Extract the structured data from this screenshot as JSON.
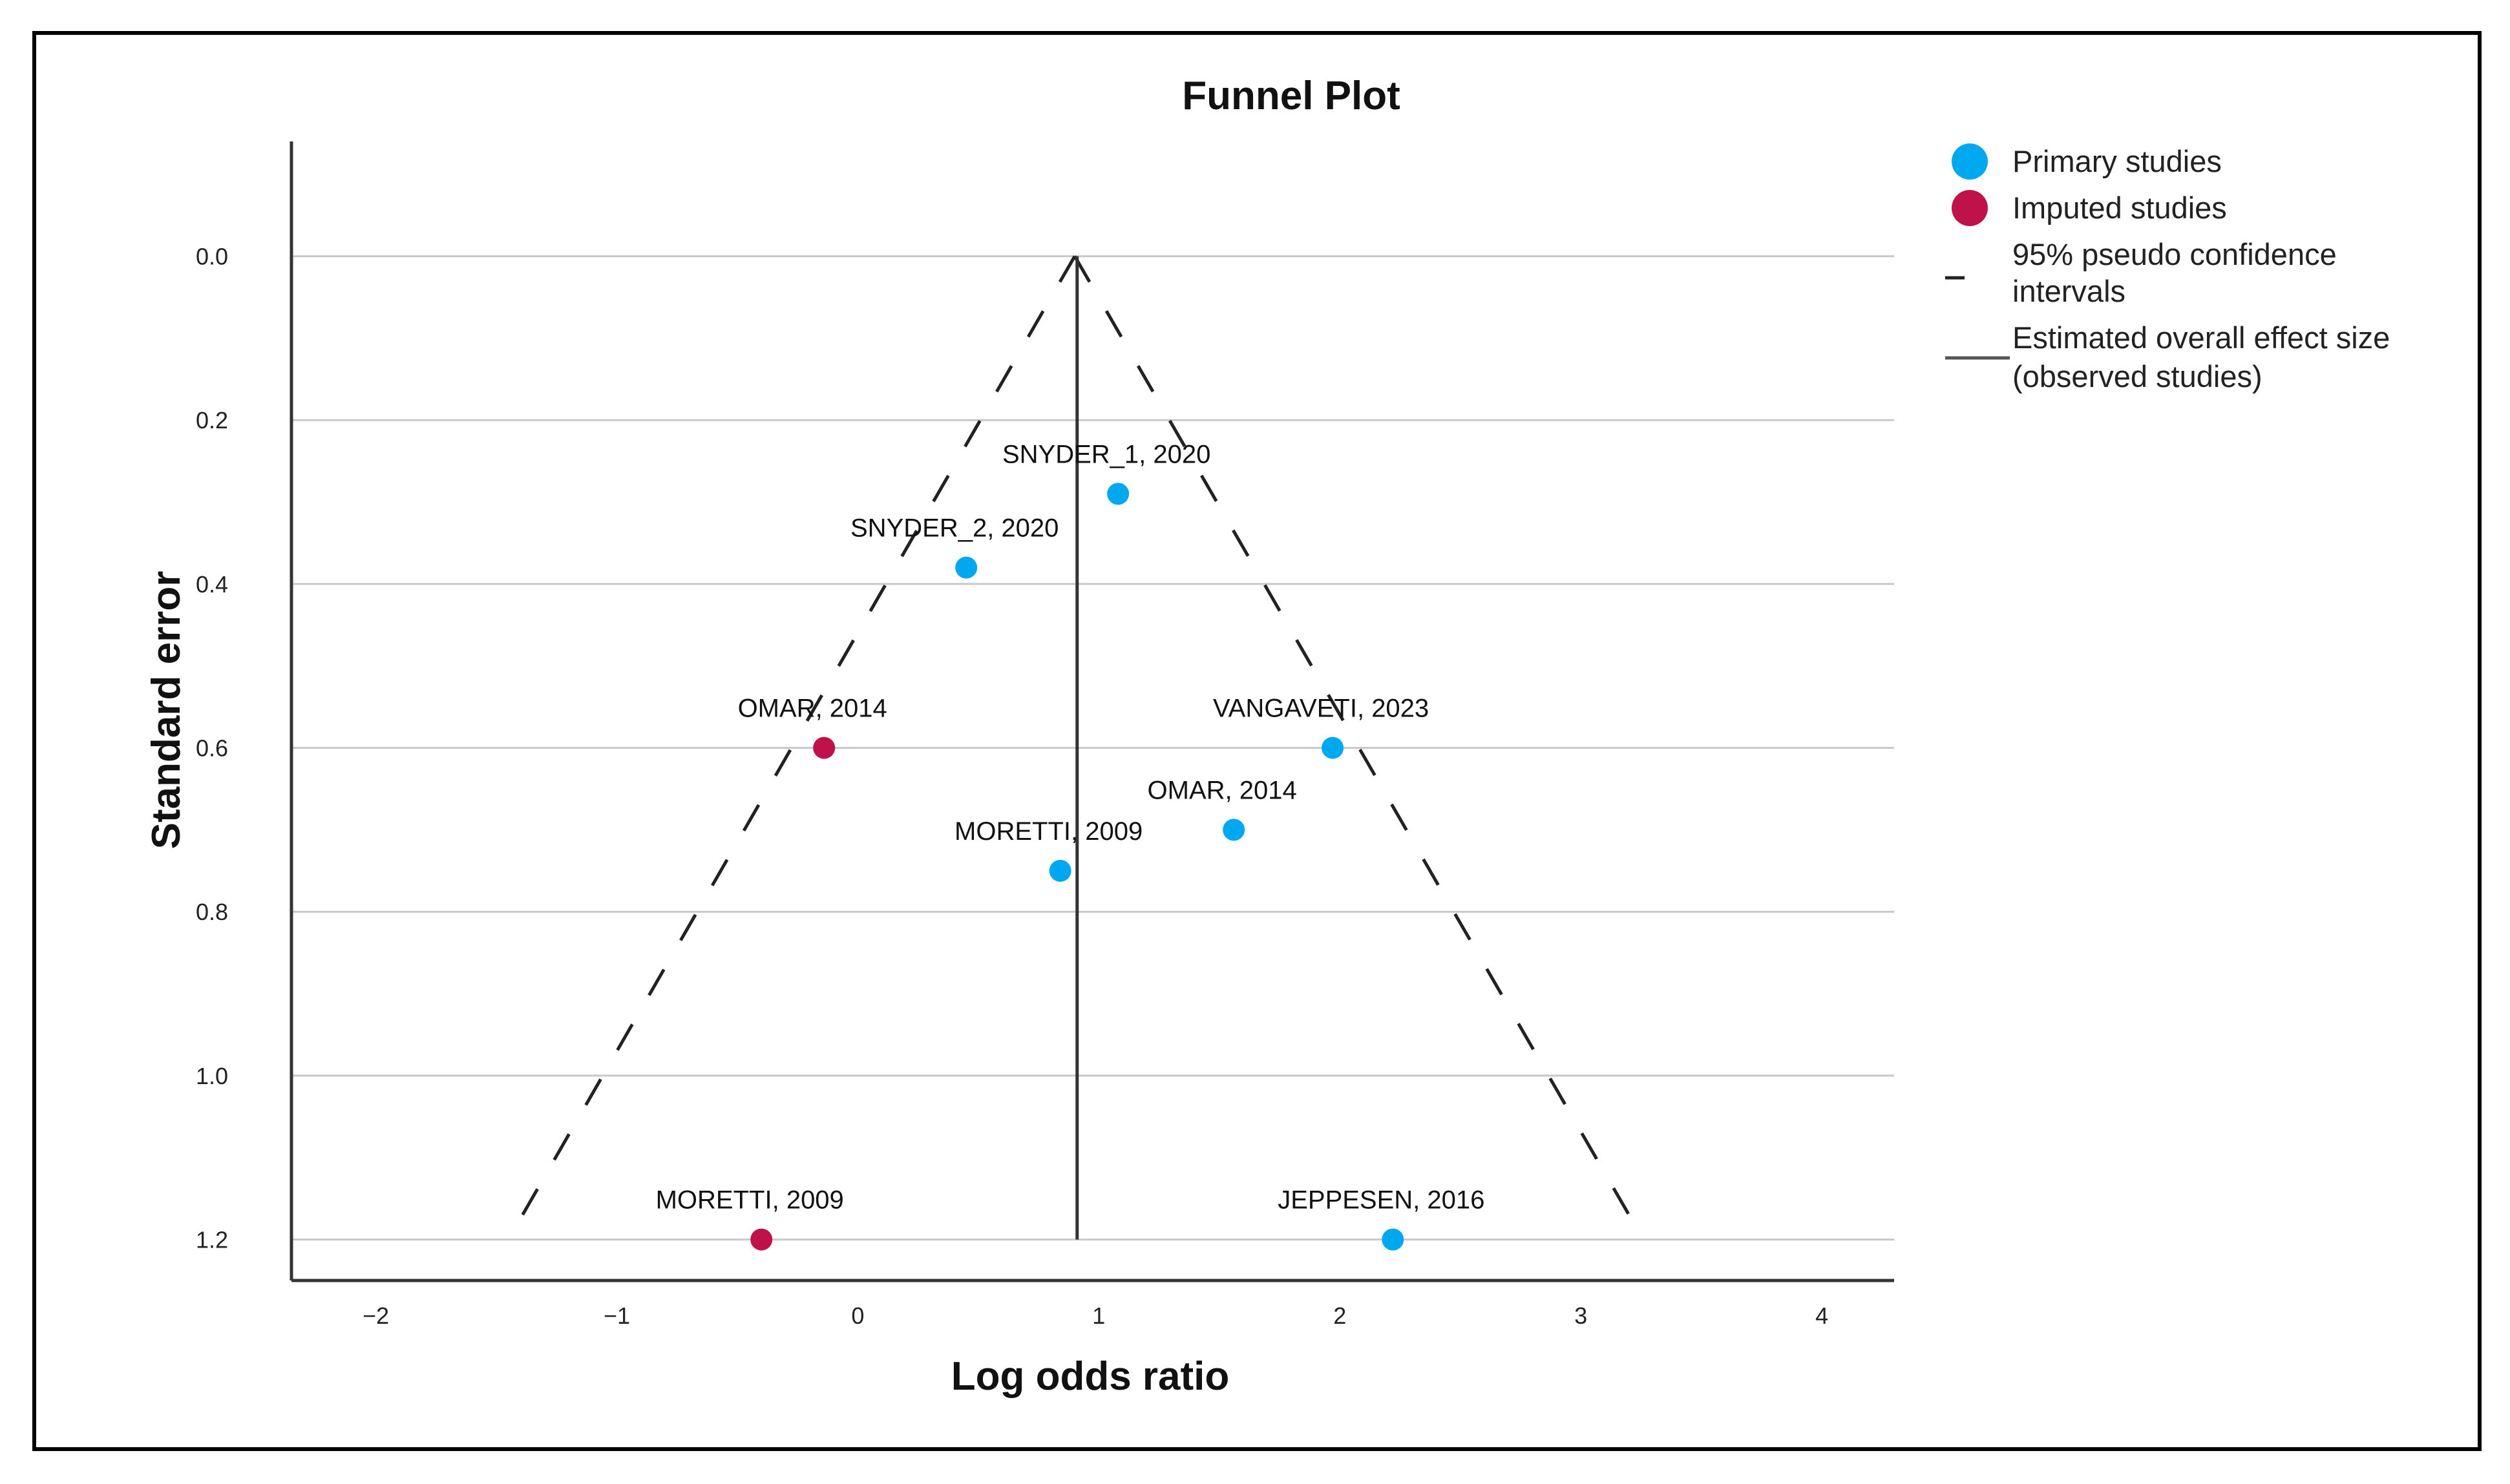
{
  "chart_data": {
    "type": "scatter",
    "title": "Funnel Plot",
    "xlabel": "Log odds ratio",
    "ylabel": "Standard error",
    "xlim": [
      -2.35,
      4.3
    ],
    "ylim": [
      -0.14,
      1.25
    ],
    "y_inverted": true,
    "grid": "horizontal",
    "x_ticks": [
      -2,
      -1,
      0,
      1,
      2,
      3,
      4
    ],
    "x_tick_labels": [
      "−2",
      "−1",
      "0",
      "1",
      "2",
      "3",
      "4"
    ],
    "y_ticks": [
      0.0,
      0.2,
      0.4,
      0.6,
      0.8,
      1.0,
      1.2
    ],
    "y_tick_labels": [
      "0.0",
      "0.2",
      "0.4",
      "0.6",
      "0.8",
      "1.0",
      "1.2"
    ],
    "series": [
      {
        "name": "Primary studies",
        "color": "#00a8f0",
        "points": [
          {
            "label": "SNYDER_1, 2020",
            "x": 1.08,
            "y": 0.29
          },
          {
            "label": "SNYDER_2, 2020",
            "x": 0.45,
            "y": 0.38
          },
          {
            "label": "VANGAVETI, 2023",
            "x": 1.97,
            "y": 0.6
          },
          {
            "label": "OMAR, 2014",
            "x": 1.56,
            "y": 0.7
          },
          {
            "label": "MORETTI, 2009",
            "x": 0.84,
            "y": 0.75
          },
          {
            "label": "JEPPESEN, 2016",
            "x": 2.22,
            "y": 1.2
          }
        ]
      },
      {
        "name": "Imputed studies",
        "color": "#c0124a",
        "points": [
          {
            "label": "OMAR, 2014",
            "x": -0.14,
            "y": 0.6
          },
          {
            "label": "MORETTI, 2009",
            "x": -0.4,
            "y": 1.2
          }
        ]
      }
    ],
    "ci_lines": {
      "name": "95% pseudo confidence intervals",
      "apex": {
        "x": 0.9,
        "y": 0.0
      },
      "left_end": {
        "x": -1.45,
        "y": 1.2
      },
      "right_end": {
        "x": 3.2,
        "y": 1.17
      }
    },
    "effect_line": {
      "name": "Estimated overall effect size (observed studies)",
      "x": 0.91,
      "y_from": 0.0,
      "y_to": 1.2
    },
    "legend": {
      "position": "right",
      "items": [
        {
          "key": "primary",
          "lines": [
            "Primary studies"
          ]
        },
        {
          "key": "imputed",
          "lines": [
            "Imputed studies"
          ]
        },
        {
          "key": "ci",
          "lines": [
            "95% pseudo confidence",
            "intervals"
          ]
        },
        {
          "key": "effect",
          "lines": [
            "Estimated overall effect size",
            "(observed studies)"
          ]
        }
      ]
    }
  }
}
